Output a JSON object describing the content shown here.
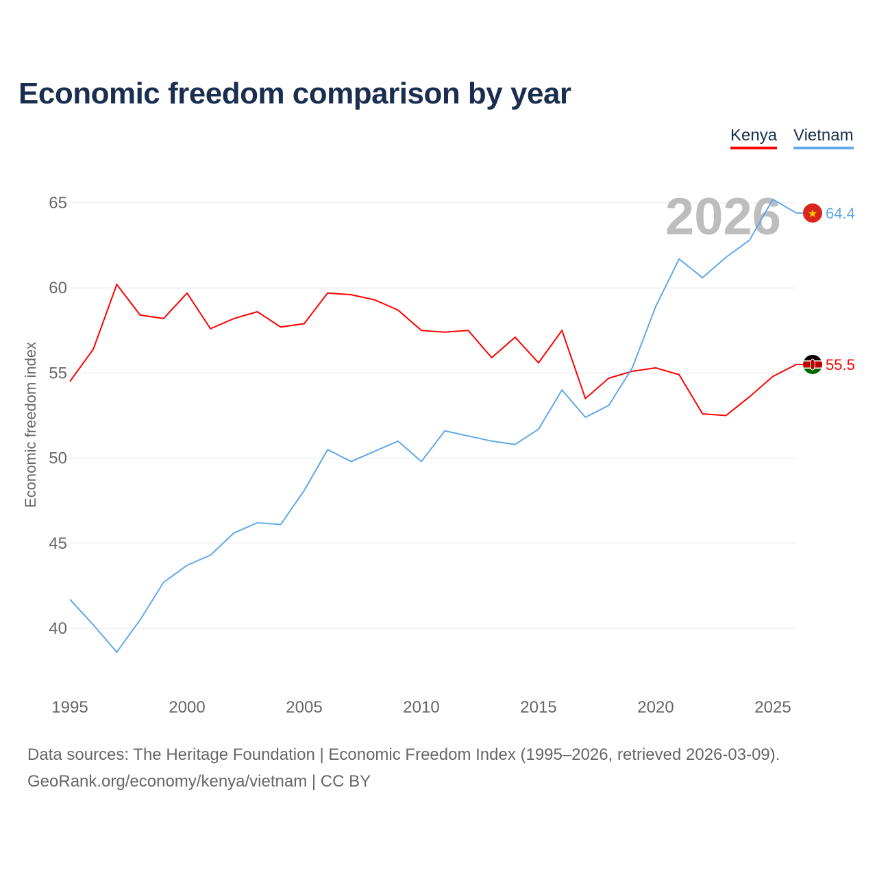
{
  "title": "Economic freedom comparison by year",
  "footer": {
    "line1": "Data sources: The Heritage Foundation | Economic Freedom Index (1995–2026, retrieved 2026-03-09).",
    "line2": "GeoRank.org/economy/kenya/vietnam | CC BY"
  },
  "chart_data": {
    "type": "line",
    "title": "Economic freedom comparison by year",
    "xlabel": "",
    "ylabel": "Economic freedom index",
    "watermark_year": "2026",
    "xlim": [
      1995,
      2026
    ],
    "ylim": [
      37,
      67
    ],
    "xticks": [
      "1995",
      "2000",
      "2005",
      "2010",
      "2015",
      "2020",
      "2025"
    ],
    "yticks": [
      "40",
      "45",
      "50",
      "55",
      "60",
      "65"
    ],
    "grid": true,
    "legend_position": "top-right",
    "x": [
      1995,
      1996,
      1997,
      1998,
      1999,
      2000,
      2001,
      2002,
      2003,
      2004,
      2005,
      2006,
      2007,
      2008,
      2009,
      2010,
      2011,
      2012,
      2013,
      2014,
      2015,
      2016,
      2017,
      2018,
      2019,
      2020,
      2021,
      2022,
      2023,
      2024,
      2025,
      2026
    ],
    "series": [
      {
        "name": "Kenya",
        "color": "#ff0000",
        "end_label": "55.5",
        "values": [
          54.5,
          56.4,
          60.2,
          58.4,
          58.2,
          59.7,
          57.6,
          58.2,
          58.6,
          57.7,
          57.9,
          59.7,
          59.6,
          59.3,
          58.7,
          57.5,
          57.4,
          57.5,
          55.9,
          57.1,
          55.6,
          57.5,
          53.5,
          54.7,
          55.1,
          55.3,
          54.9,
          52.6,
          52.5,
          53.6,
          54.8,
          55.5
        ]
      },
      {
        "name": "Vietnam",
        "color": "#5fa8ea",
        "end_label": "64.4",
        "values": [
          41.7,
          40.2,
          38.6,
          40.5,
          42.7,
          43.7,
          44.3,
          45.6,
          46.2,
          46.1,
          48.1,
          50.5,
          49.8,
          50.4,
          51.0,
          49.8,
          51.6,
          51.3,
          51.0,
          50.8,
          51.7,
          54.0,
          52.4,
          53.1,
          55.3,
          58.9,
          61.7,
          60.6,
          61.8,
          62.8,
          65.2,
          64.4
        ]
      }
    ]
  }
}
